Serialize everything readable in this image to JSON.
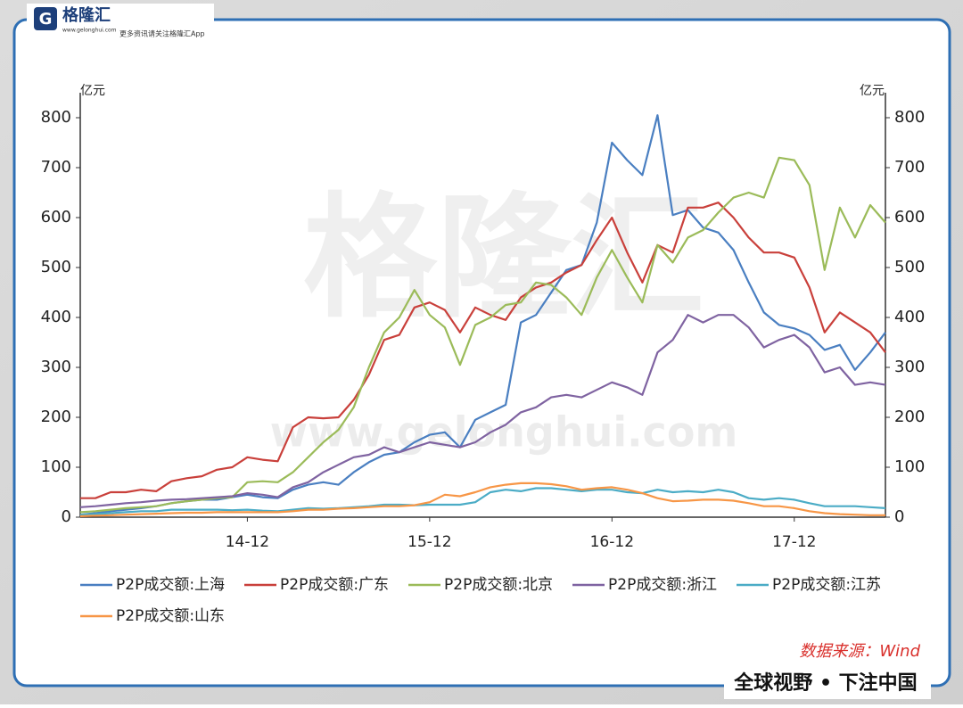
{
  "header": {
    "logo": "格隆汇",
    "site": "www.gelonghui.com",
    "tagline": "更多资讯请关注格隆汇App"
  },
  "watermark": {
    "logo": "格隆汇",
    "site": "www.gelonghui.com"
  },
  "source": "数据来源：Wind",
  "slogan": "全球视野 • 下注中国",
  "chart_data": {
    "type": "line",
    "y_label": "亿元",
    "y2_label": "亿元",
    "categories": [
      null,
      null,
      null,
      null,
      null,
      null,
      null,
      null,
      null,
      null,
      null,
      "14-12",
      null,
      null,
      null,
      null,
      null,
      null,
      null,
      null,
      null,
      null,
      null,
      "15-12",
      null,
      null,
      null,
      null,
      null,
      null,
      null,
      null,
      null,
      null,
      null,
      "16-12",
      null,
      null,
      null,
      null,
      null,
      null,
      null,
      null,
      null,
      null,
      null,
      "17-12",
      null,
      null,
      null,
      null,
      null,
      null
    ],
    "ylim": [
      0,
      850
    ],
    "yticks": [
      0,
      100,
      200,
      300,
      400,
      500,
      600,
      700,
      800
    ],
    "y2lim": [
      0,
      850
    ],
    "y2ticks": [
      0,
      100,
      200,
      300,
      400,
      500,
      600,
      700,
      800
    ],
    "grid": false,
    "legend": "bottom",
    "series": [
      {
        "name": "P2P成交额:上海",
        "color": "#4a7fc1",
        "values": [
          5,
          8,
          12,
          15,
          18,
          22,
          28,
          32,
          35,
          35,
          40,
          45,
          40,
          38,
          55,
          65,
          70,
          65,
          90,
          110,
          125,
          130,
          150,
          165,
          170,
          140,
          195,
          210,
          225,
          390,
          405,
          450,
          495,
          505,
          590,
          750,
          715,
          685,
          805,
          605,
          615,
          580,
          570,
          535,
          470,
          410,
          385,
          378,
          365,
          335,
          345,
          295,
          330,
          370
        ]
      },
      {
        "name": "P2P成交额:广东",
        "color": "#c9403b",
        "values": [
          38,
          38,
          50,
          50,
          55,
          52,
          72,
          78,
          82,
          95,
          100,
          120,
          115,
          112,
          180,
          200,
          198,
          200,
          235,
          285,
          355,
          365,
          420,
          430,
          415,
          370,
          420,
          405,
          395,
          440,
          460,
          470,
          490,
          505,
          555,
          600,
          530,
          470,
          545,
          530,
          620,
          620,
          630,
          600,
          560,
          530,
          530,
          520,
          460,
          370,
          410,
          390,
          370,
          330
        ]
      },
      {
        "name": "P2P成交额:北京",
        "color": "#9bbb59",
        "values": [
          10,
          12,
          15,
          18,
          20,
          22,
          28,
          32,
          35,
          38,
          40,
          70,
          72,
          70,
          90,
          120,
          150,
          175,
          220,
          300,
          370,
          400,
          455,
          405,
          380,
          305,
          385,
          400,
          425,
          430,
          470,
          465,
          440,
          405,
          480,
          535,
          480,
          430,
          545,
          510,
          560,
          575,
          610,
          640,
          650,
          640,
          720,
          715,
          665,
          495,
          620,
          560,
          625,
          590
        ]
      },
      {
        "name": "P2P成交额:浙江",
        "color": "#7f63a1",
        "values": [
          20,
          22,
          25,
          28,
          30,
          33,
          35,
          36,
          38,
          40,
          42,
          48,
          45,
          40,
          60,
          70,
          90,
          105,
          120,
          125,
          140,
          130,
          140,
          150,
          145,
          140,
          150,
          170,
          185,
          210,
          220,
          240,
          245,
          240,
          255,
          270,
          260,
          245,
          330,
          355,
          405,
          390,
          405,
          405,
          380,
          340,
          355,
          365,
          340,
          290,
          300,
          265,
          270,
          265
        ]
      },
      {
        "name": "P2P成交额:江苏",
        "color": "#4bacc6",
        "values": [
          5,
          6,
          8,
          10,
          12,
          12,
          15,
          15,
          15,
          15,
          14,
          15,
          13,
          12,
          15,
          18,
          17,
          18,
          20,
          22,
          25,
          25,
          24,
          25,
          25,
          25,
          30,
          50,
          55,
          52,
          58,
          58,
          55,
          52,
          55,
          55,
          50,
          48,
          55,
          50,
          52,
          50,
          55,
          50,
          38,
          35,
          38,
          35,
          28,
          22,
          22,
          22,
          20,
          18
        ]
      },
      {
        "name": "P2P成交额:山东",
        "color": "#f79646",
        "values": [
          2,
          3,
          4,
          5,
          6,
          7,
          8,
          9,
          9,
          10,
          10,
          10,
          10,
          10,
          12,
          15,
          15,
          17,
          18,
          20,
          22,
          22,
          24,
          30,
          45,
          42,
          50,
          60,
          65,
          68,
          68,
          66,
          62,
          55,
          58,
          60,
          55,
          48,
          38,
          32,
          33,
          35,
          35,
          33,
          28,
          22,
          22,
          18,
          12,
          8,
          6,
          5,
          4,
          4
        ]
      }
    ]
  }
}
